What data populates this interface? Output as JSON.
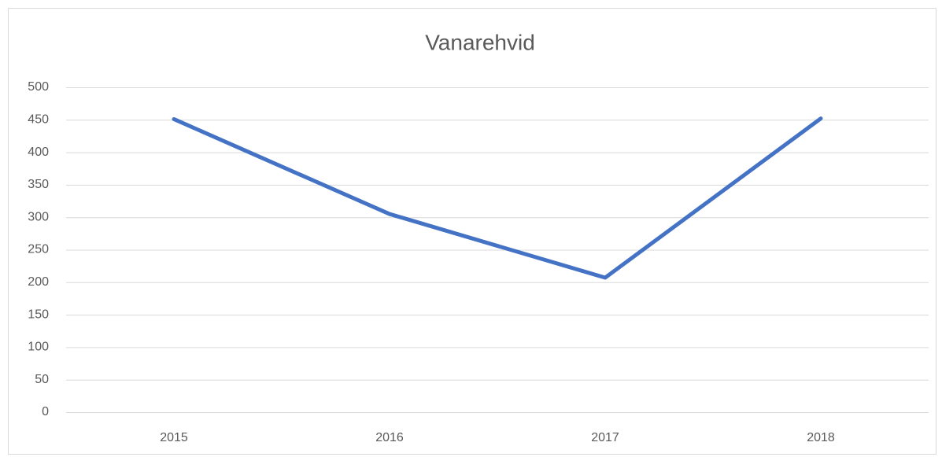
{
  "chart_data": {
    "type": "line",
    "title": "Vanarehvid",
    "categories": [
      "2015",
      "2016",
      "2017",
      "2018"
    ],
    "series": [
      {
        "name": "Vanarehvid",
        "color": "#4472c4",
        "values": [
          451,
          305,
          207,
          452
        ]
      }
    ],
    "ylim": [
      0,
      500
    ],
    "yticks": [
      0,
      50,
      100,
      150,
      200,
      250,
      300,
      350,
      400,
      450,
      500
    ],
    "grid": true
  }
}
